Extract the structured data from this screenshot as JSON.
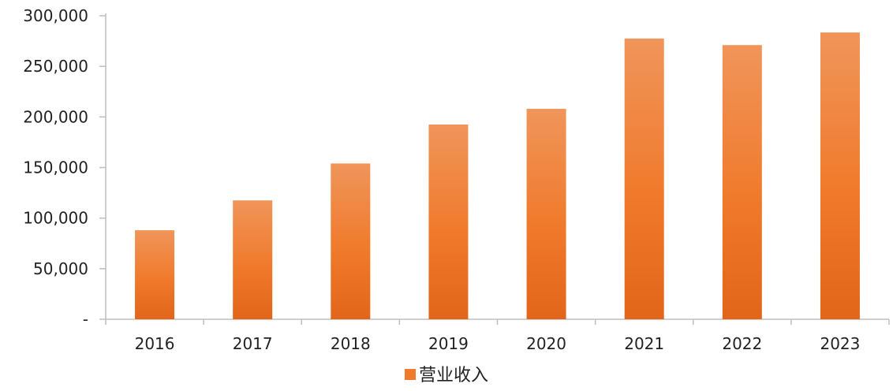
{
  "chart_data": {
    "type": "bar",
    "categories": [
      "2016",
      "2017",
      "2018",
      "2019",
      "2020",
      "2021",
      "2022",
      "2023"
    ],
    "series": [
      {
        "name": "营业收入",
        "values": [
          88000,
          117500,
          154000,
          192500,
          208000,
          277500,
          271000,
          283500
        ]
      }
    ],
    "ylim": [
      0,
      300000
    ],
    "y_ticks": [
      0,
      50000,
      100000,
      150000,
      200000,
      250000,
      300000
    ],
    "y_tick_labels": [
      "-",
      "50,000",
      "100,000",
      "150,000",
      "200,000",
      "250,000",
      "300,000"
    ],
    "grid": false,
    "legend_position": "bottom",
    "colors": {
      "bar_top": "#F0955A",
      "bar_mid": "#F07A2C",
      "bar_bottom": "#E2651A",
      "axis": "#BFBFBF"
    }
  }
}
